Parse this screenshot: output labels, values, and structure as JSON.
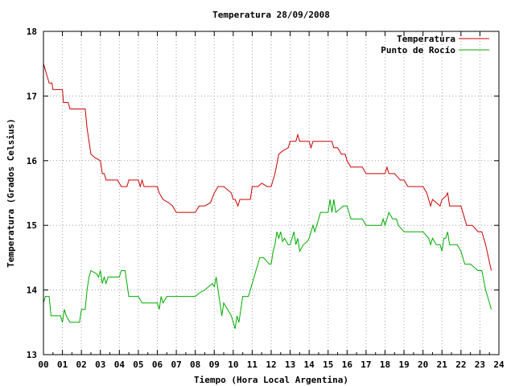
{
  "chart_data": {
    "type": "line",
    "title": "Temperatura 28/09/2008",
    "xlabel": "Tiempo (Hora Local Argentina)",
    "ylabel": "Temperatura (Grados Celsius)",
    "xlim": [
      0,
      24
    ],
    "ylim": [
      13,
      18
    ],
    "x_ticks": [
      "00",
      "01",
      "02",
      "03",
      "04",
      "05",
      "06",
      "07",
      "08",
      "09",
      "10",
      "11",
      "12",
      "13",
      "14",
      "15",
      "16",
      "17",
      "18",
      "19",
      "20",
      "21",
      "22",
      "23",
      "24"
    ],
    "y_ticks": [
      "13",
      "14",
      "15",
      "16",
      "17",
      "18"
    ],
    "grid": true,
    "legend_position": "top-right",
    "series": [
      {
        "name": "Temperatura",
        "color": "#cc0000",
        "points": [
          [
            0.0,
            17.5
          ],
          [
            0.1,
            17.4
          ],
          [
            0.2,
            17.3
          ],
          [
            0.3,
            17.2
          ],
          [
            0.45,
            17.2
          ],
          [
            0.5,
            17.1
          ],
          [
            0.75,
            17.1
          ],
          [
            1.0,
            17.1
          ],
          [
            1.05,
            16.9
          ],
          [
            1.3,
            16.9
          ],
          [
            1.4,
            16.8
          ],
          [
            1.7,
            16.8
          ],
          [
            2.0,
            16.8
          ],
          [
            2.2,
            16.8
          ],
          [
            2.3,
            16.5
          ],
          [
            2.4,
            16.3
          ],
          [
            2.5,
            16.1
          ],
          [
            2.7,
            16.05
          ],
          [
            3.0,
            16.0
          ],
          [
            3.1,
            15.8
          ],
          [
            3.2,
            15.8
          ],
          [
            3.3,
            15.7
          ],
          [
            3.6,
            15.7
          ],
          [
            3.9,
            15.7
          ],
          [
            4.1,
            15.6
          ],
          [
            4.4,
            15.6
          ],
          [
            4.5,
            15.7
          ],
          [
            5.0,
            15.7
          ],
          [
            5.1,
            15.6
          ],
          [
            5.2,
            15.7
          ],
          [
            5.3,
            15.6
          ],
          [
            6.0,
            15.6
          ],
          [
            6.1,
            15.5
          ],
          [
            6.3,
            15.4
          ],
          [
            6.6,
            15.35
          ],
          [
            6.8,
            15.3
          ],
          [
            7.0,
            15.2
          ],
          [
            7.5,
            15.2
          ],
          [
            8.0,
            15.2
          ],
          [
            8.2,
            15.3
          ],
          [
            8.5,
            15.3
          ],
          [
            8.8,
            15.35
          ],
          [
            9.0,
            15.5
          ],
          [
            9.2,
            15.6
          ],
          [
            9.5,
            15.6
          ],
          [
            9.7,
            15.55
          ],
          [
            9.9,
            15.5
          ],
          [
            10.0,
            15.4
          ],
          [
            10.1,
            15.4
          ],
          [
            10.25,
            15.3
          ],
          [
            10.35,
            15.4
          ],
          [
            10.9,
            15.4
          ],
          [
            11.0,
            15.6
          ],
          [
            11.3,
            15.6
          ],
          [
            11.5,
            15.65
          ],
          [
            11.8,
            15.6
          ],
          [
            12.0,
            15.6
          ],
          [
            12.2,
            15.8
          ],
          [
            12.4,
            16.1
          ],
          [
            12.6,
            16.15
          ],
          [
            12.9,
            16.2
          ],
          [
            13.0,
            16.3
          ],
          [
            13.3,
            16.3
          ],
          [
            13.4,
            16.4
          ],
          [
            13.5,
            16.3
          ],
          [
            14.0,
            16.3
          ],
          [
            14.1,
            16.2
          ],
          [
            14.2,
            16.3
          ],
          [
            15.0,
            16.3
          ],
          [
            15.2,
            16.3
          ],
          [
            15.3,
            16.2
          ],
          [
            15.5,
            16.2
          ],
          [
            15.7,
            16.1
          ],
          [
            15.9,
            16.1
          ],
          [
            16.0,
            16.0
          ],
          [
            16.2,
            15.9
          ],
          [
            16.8,
            15.9
          ],
          [
            17.0,
            15.8
          ],
          [
            17.5,
            15.8
          ],
          [
            18.0,
            15.8
          ],
          [
            18.1,
            15.9
          ],
          [
            18.2,
            15.8
          ],
          [
            18.5,
            15.8
          ],
          [
            18.8,
            15.7
          ],
          [
            19.0,
            15.7
          ],
          [
            19.2,
            15.6
          ],
          [
            20.0,
            15.6
          ],
          [
            20.2,
            15.5
          ],
          [
            20.4,
            15.3
          ],
          [
            20.5,
            15.4
          ],
          [
            20.7,
            15.35
          ],
          [
            20.9,
            15.3
          ],
          [
            21.0,
            15.4
          ],
          [
            21.2,
            15.45
          ],
          [
            21.3,
            15.5
          ],
          [
            21.4,
            15.3
          ],
          [
            21.9,
            15.3
          ],
          [
            22.0,
            15.3
          ],
          [
            22.2,
            15.1
          ],
          [
            22.3,
            15.0
          ],
          [
            22.6,
            15.0
          ],
          [
            22.9,
            14.9
          ],
          [
            23.1,
            14.9
          ],
          [
            23.3,
            14.7
          ],
          [
            23.45,
            14.5
          ],
          [
            23.6,
            14.3
          ]
        ]
      },
      {
        "name": "Punto de Rocío",
        "color": "#00aa00",
        "points": [
          [
            0.0,
            13.8
          ],
          [
            0.1,
            13.9
          ],
          [
            0.3,
            13.9
          ],
          [
            0.4,
            13.6
          ],
          [
            0.9,
            13.6
          ],
          [
            1.0,
            13.5
          ],
          [
            1.1,
            13.7
          ],
          [
            1.2,
            13.6
          ],
          [
            1.4,
            13.5
          ],
          [
            1.9,
            13.5
          ],
          [
            2.0,
            13.7
          ],
          [
            2.2,
            13.7
          ],
          [
            2.3,
            14.0
          ],
          [
            2.4,
            14.2
          ],
          [
            2.5,
            14.3
          ],
          [
            2.8,
            14.25
          ],
          [
            2.9,
            14.2
          ],
          [
            3.0,
            14.3
          ],
          [
            3.1,
            14.1
          ],
          [
            3.2,
            14.2
          ],
          [
            3.3,
            14.1
          ],
          [
            3.4,
            14.2
          ],
          [
            4.0,
            14.2
          ],
          [
            4.1,
            14.3
          ],
          [
            4.3,
            14.3
          ],
          [
            4.4,
            14.1
          ],
          [
            4.5,
            13.9
          ],
          [
            5.0,
            13.9
          ],
          [
            5.2,
            13.8
          ],
          [
            5.5,
            13.8
          ],
          [
            6.0,
            13.8
          ],
          [
            6.1,
            13.7
          ],
          [
            6.2,
            13.9
          ],
          [
            6.3,
            13.8
          ],
          [
            6.5,
            13.9
          ],
          [
            8.0,
            13.9
          ],
          [
            8.2,
            13.95
          ],
          [
            8.5,
            14.0
          ],
          [
            8.9,
            14.1
          ],
          [
            9.0,
            14.05
          ],
          [
            9.1,
            14.2
          ],
          [
            9.2,
            14.0
          ],
          [
            9.4,
            13.6
          ],
          [
            9.5,
            13.8
          ],
          [
            9.7,
            13.7
          ],
          [
            9.9,
            13.6
          ],
          [
            10.0,
            13.5
          ],
          [
            10.1,
            13.4
          ],
          [
            10.2,
            13.6
          ],
          [
            10.3,
            13.5
          ],
          [
            10.4,
            13.7
          ],
          [
            10.5,
            13.9
          ],
          [
            10.8,
            13.9
          ],
          [
            11.0,
            14.1
          ],
          [
            11.2,
            14.3
          ],
          [
            11.4,
            14.5
          ],
          [
            11.6,
            14.5
          ],
          [
            11.9,
            14.4
          ],
          [
            12.0,
            14.4
          ],
          [
            12.1,
            14.6
          ],
          [
            12.2,
            14.7
          ],
          [
            12.3,
            14.9
          ],
          [
            12.4,
            14.8
          ],
          [
            12.5,
            14.9
          ],
          [
            12.6,
            14.75
          ],
          [
            12.7,
            14.8
          ],
          [
            12.9,
            14.7
          ],
          [
            13.0,
            14.7
          ],
          [
            13.1,
            14.8
          ],
          [
            13.2,
            14.9
          ],
          [
            13.3,
            14.7
          ],
          [
            13.4,
            14.8
          ],
          [
            13.5,
            14.6
          ],
          [
            13.7,
            14.7
          ],
          [
            13.9,
            14.75
          ],
          [
            14.0,
            14.8
          ],
          [
            14.2,
            15.0
          ],
          [
            14.3,
            14.9
          ],
          [
            14.5,
            15.1
          ],
          [
            14.6,
            15.2
          ],
          [
            14.8,
            15.2
          ],
          [
            15.0,
            15.2
          ],
          [
            15.1,
            15.4
          ],
          [
            15.2,
            15.2
          ],
          [
            15.3,
            15.4
          ],
          [
            15.4,
            15.2
          ],
          [
            15.6,
            15.25
          ],
          [
            15.8,
            15.3
          ],
          [
            16.0,
            15.3
          ],
          [
            16.1,
            15.2
          ],
          [
            16.2,
            15.1
          ],
          [
            16.8,
            15.1
          ],
          [
            17.0,
            15.0
          ],
          [
            17.5,
            15.0
          ],
          [
            17.8,
            15.0
          ],
          [
            17.9,
            15.1
          ],
          [
            18.0,
            15.0
          ],
          [
            18.1,
            15.1
          ],
          [
            18.2,
            15.2
          ],
          [
            18.4,
            15.1
          ],
          [
            18.6,
            15.1
          ],
          [
            18.7,
            15.0
          ],
          [
            19.0,
            14.9
          ],
          [
            19.5,
            14.9
          ],
          [
            20.0,
            14.9
          ],
          [
            20.3,
            14.8
          ],
          [
            20.4,
            14.7
          ],
          [
            20.5,
            14.8
          ],
          [
            20.7,
            14.7
          ],
          [
            20.9,
            14.7
          ],
          [
            21.0,
            14.6
          ],
          [
            21.1,
            14.8
          ],
          [
            21.2,
            14.8
          ],
          [
            21.3,
            14.9
          ],
          [
            21.4,
            14.7
          ],
          [
            21.8,
            14.7
          ],
          [
            22.0,
            14.6
          ],
          [
            22.1,
            14.5
          ],
          [
            22.2,
            14.4
          ],
          [
            22.5,
            14.4
          ],
          [
            22.7,
            14.35
          ],
          [
            22.9,
            14.3
          ],
          [
            23.1,
            14.3
          ],
          [
            23.3,
            14.0
          ],
          [
            23.4,
            13.9
          ],
          [
            23.6,
            13.7
          ]
        ]
      }
    ]
  }
}
